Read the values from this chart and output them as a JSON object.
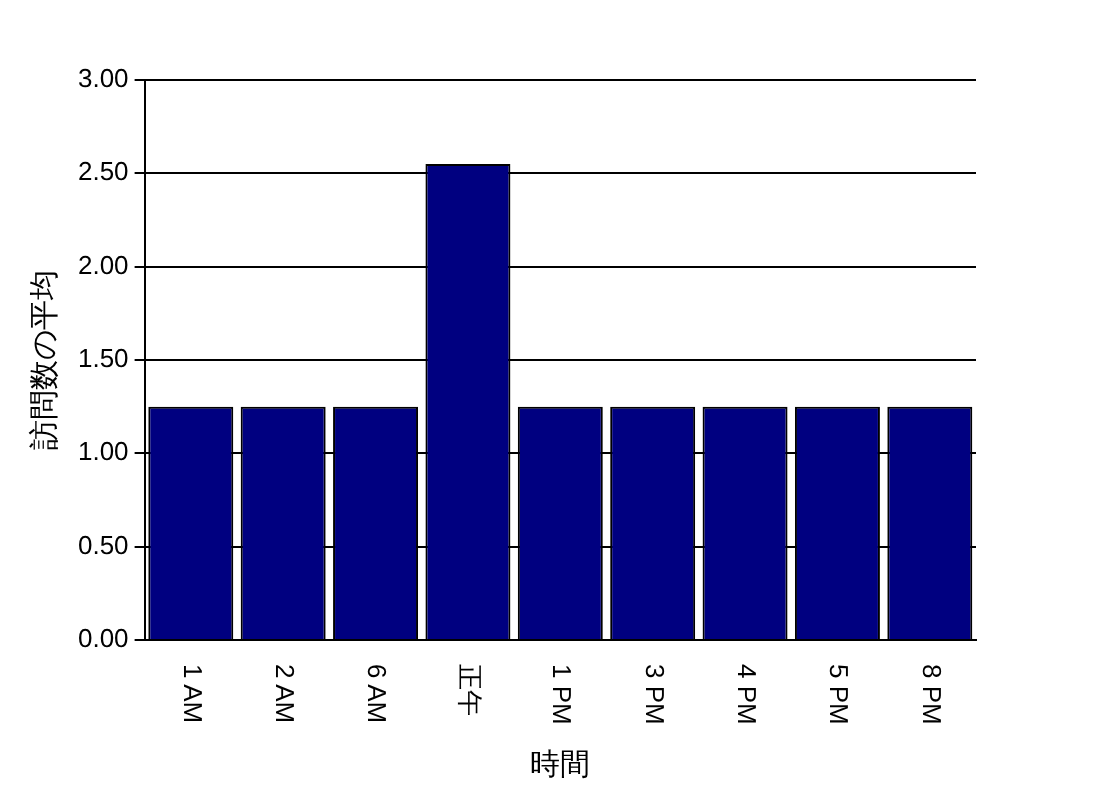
{
  "chart_data": {
    "type": "bar",
    "xlabel": "時間",
    "ylabel": "訪問数の平均",
    "categories": [
      "1 AM",
      "2 AM",
      "6 AM",
      "正午",
      "1 PM",
      "3 PM",
      "4 PM",
      "5 PM",
      "8 PM"
    ],
    "values": [
      1.25,
      1.25,
      1.25,
      2.55,
      1.25,
      1.25,
      1.25,
      1.25,
      1.25
    ],
    "color": "#000080",
    "ylim": [
      0,
      3
    ],
    "yticks": [
      {
        "value": 0,
        "label": "0.00"
      },
      {
        "value": 0.5,
        "label": "0.50"
      },
      {
        "value": 1,
        "label": "1.00"
      },
      {
        "value": 1.5,
        "label": "1.50"
      },
      {
        "value": 2,
        "label": "2.00"
      },
      {
        "value": 2.5,
        "label": "2.50"
      },
      {
        "value": 3,
        "label": "3.00"
      }
    ],
    "grid": "y",
    "legend": false
  }
}
